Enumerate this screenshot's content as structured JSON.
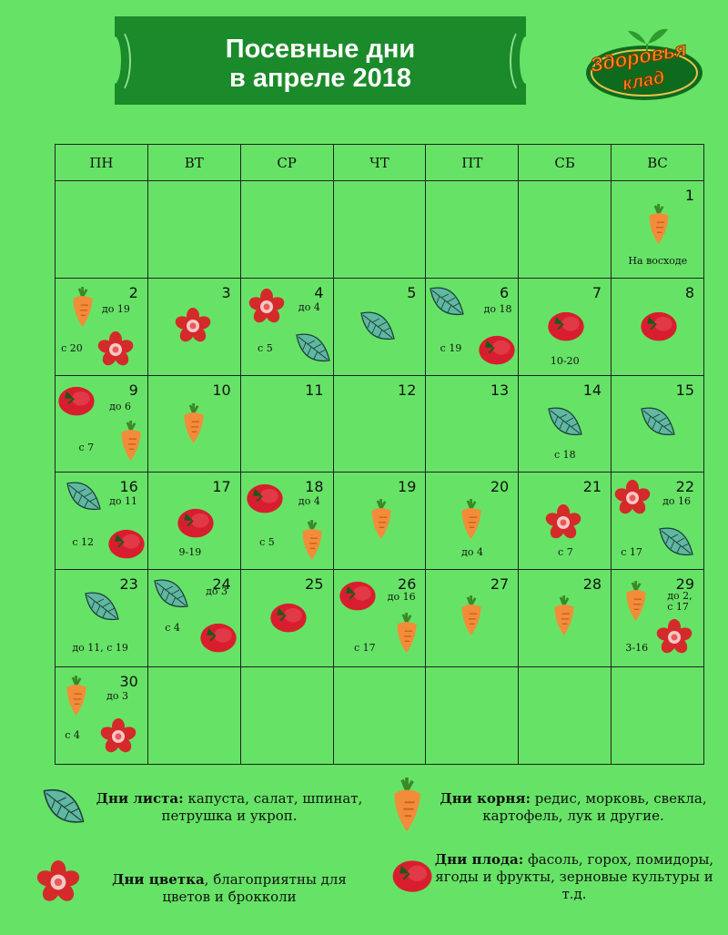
{
  "header": {
    "title": "Посевные дни\nв апреле 2018",
    "logo_word1": "Здоровья",
    "logo_word2": "клад"
  },
  "calendar": {
    "weekdays": [
      "ПН",
      "ВТ",
      "СР",
      "ЧТ",
      "ПТ",
      "СБ",
      "ВС"
    ],
    "cells": [
      {
        "row": 0,
        "col": 6,
        "day": "1",
        "icons": [
          [
            "carrot",
            0.5,
            0.45
          ]
        ],
        "notes": [
          [
            "На восходе",
            0.18,
            0.82
          ]
        ]
      },
      {
        "row": 1,
        "col": 0,
        "day": "2",
        "icons": [
          [
            "carrot",
            0.28,
            0.3
          ],
          [
            "flower",
            0.65,
            0.72
          ]
        ],
        "notes": [
          [
            "до 19",
            0.5,
            0.32
          ],
          [
            "с 20",
            0.06,
            0.72
          ]
        ]
      },
      {
        "row": 1,
        "col": 1,
        "day": "3",
        "icons": [
          [
            "flower",
            0.48,
            0.48
          ]
        ],
        "notes": []
      },
      {
        "row": 1,
        "col": 2,
        "day": "4",
        "icons": [
          [
            "flower",
            0.28,
            0.28
          ],
          [
            "leaf",
            0.78,
            0.72
          ]
        ],
        "notes": [
          [
            "до 4",
            0.62,
            0.3
          ],
          [
            "с 5",
            0.18,
            0.72
          ]
        ]
      },
      {
        "row": 1,
        "col": 3,
        "day": "5",
        "icons": [
          [
            "leaf",
            0.48,
            0.5
          ]
        ],
        "notes": []
      },
      {
        "row": 1,
        "col": 4,
        "day": "6",
        "icons": [
          [
            "leaf",
            0.22,
            0.25
          ],
          [
            "tomato",
            0.75,
            0.72
          ]
        ],
        "notes": [
          [
            "до 18",
            0.62,
            0.32
          ],
          [
            "с 19",
            0.15,
            0.72
          ]
        ]
      },
      {
        "row": 1,
        "col": 5,
        "day": "7",
        "icons": [
          [
            "tomato",
            0.5,
            0.48
          ]
        ],
        "notes": [
          [
            "10-20",
            0.34,
            0.85
          ]
        ]
      },
      {
        "row": 1,
        "col": 6,
        "day": "8",
        "icons": [
          [
            "tomato",
            0.5,
            0.48
          ]
        ],
        "notes": []
      },
      {
        "row": 2,
        "col": 0,
        "day": "9",
        "icons": [
          [
            "tomato",
            0.22,
            0.25
          ],
          [
            "carrot",
            0.8,
            0.68
          ]
        ],
        "notes": [
          [
            "до 6",
            0.58,
            0.32
          ],
          [
            "с 7",
            0.25,
            0.74
          ]
        ]
      },
      {
        "row": 2,
        "col": 1,
        "day": "10",
        "icons": [
          [
            "carrot",
            0.48,
            0.5
          ]
        ],
        "notes": []
      },
      {
        "row": 2,
        "col": 2,
        "day": "11",
        "icons": [],
        "notes": []
      },
      {
        "row": 2,
        "col": 3,
        "day": "12",
        "icons": [],
        "notes": []
      },
      {
        "row": 2,
        "col": 4,
        "day": "13",
        "icons": [],
        "notes": []
      },
      {
        "row": 2,
        "col": 5,
        "day": "14",
        "icons": [
          [
            "leaf",
            0.5,
            0.48
          ]
        ],
        "notes": [
          [
            "с 18",
            0.38,
            0.82
          ]
        ]
      },
      {
        "row": 2,
        "col": 6,
        "day": "15",
        "icons": [
          [
            "leaf",
            0.5,
            0.48
          ]
        ],
        "notes": []
      },
      {
        "row": 3,
        "col": 0,
        "day": "16",
        "icons": [
          [
            "leaf",
            0.3,
            0.25
          ],
          [
            "tomato",
            0.75,
            0.72
          ]
        ],
        "notes": [
          [
            "до 11",
            0.58,
            0.3
          ],
          [
            "с 12",
            0.18,
            0.72
          ]
        ]
      },
      {
        "row": 3,
        "col": 1,
        "day": "17",
        "icons": [
          [
            "tomato",
            0.5,
            0.5
          ]
        ],
        "notes": [
          [
            "9-19",
            0.33,
            0.82
          ]
        ]
      },
      {
        "row": 3,
        "col": 2,
        "day": "18",
        "icons": [
          [
            "tomato",
            0.25,
            0.25
          ],
          [
            "carrot",
            0.76,
            0.7
          ]
        ],
        "notes": [
          [
            "до 4",
            0.62,
            0.3
          ],
          [
            "с 5",
            0.2,
            0.72
          ]
        ]
      },
      {
        "row": 3,
        "col": 3,
        "day": "19",
        "icons": [
          [
            "carrot",
            0.5,
            0.48
          ]
        ],
        "notes": []
      },
      {
        "row": 3,
        "col": 4,
        "day": "20",
        "icons": [
          [
            "carrot",
            0.48,
            0.48
          ]
        ],
        "notes": [
          [
            "до 4",
            0.38,
            0.82
          ]
        ]
      },
      {
        "row": 3,
        "col": 5,
        "day": "21",
        "icons": [
          [
            "flower",
            0.48,
            0.5
          ]
        ],
        "notes": [
          [
            "с 7",
            0.42,
            0.82
          ]
        ]
      },
      {
        "row": 3,
        "col": 6,
        "day": "22",
        "icons": [
          [
            "flower",
            0.22,
            0.25
          ],
          [
            "leaf",
            0.7,
            0.72
          ]
        ],
        "notes": [
          [
            "до 16",
            0.55,
            0.3
          ],
          [
            "с  17",
            0.1,
            0.82
          ]
        ]
      },
      {
        "row": 4,
        "col": 0,
        "day": "23",
        "icons": [
          [
            "leaf",
            0.5,
            0.38
          ]
        ],
        "notes": [
          [
            "до 11, с 19",
            0.18,
            0.8
          ]
        ]
      },
      {
        "row": 4,
        "col": 1,
        "day": "24",
        "icons": [
          [
            "leaf",
            0.25,
            0.25
          ],
          [
            "tomato",
            0.75,
            0.68
          ]
        ],
        "notes": [
          [
            "до 3",
            0.62,
            0.22
          ],
          [
            "с 4",
            0.18,
            0.6
          ]
        ]
      },
      {
        "row": 4,
        "col": 2,
        "day": "25",
        "icons": [
          [
            "tomato",
            0.5,
            0.48
          ]
        ],
        "notes": []
      },
      {
        "row": 4,
        "col": 3,
        "day": "26",
        "icons": [
          [
            "tomato",
            0.25,
            0.25
          ],
          [
            "carrot",
            0.78,
            0.65
          ]
        ],
        "notes": [
          [
            "до 16",
            0.58,
            0.28
          ],
          [
            "с 17",
            0.22,
            0.8
          ]
        ]
      },
      {
        "row": 4,
        "col": 4,
        "day": "27",
        "icons": [
          [
            "carrot",
            0.48,
            0.48
          ]
        ],
        "notes": []
      },
      {
        "row": 4,
        "col": 5,
        "day": "28",
        "icons": [
          [
            "carrot",
            0.48,
            0.48
          ]
        ],
        "notes": []
      },
      {
        "row": 4,
        "col": 6,
        "day": "29",
        "icons": [
          [
            "carrot",
            0.25,
            0.33
          ],
          [
            "flower",
            0.68,
            0.68
          ]
        ],
        "notes": [
          [
            "до 2,",
            0.6,
            0.27
          ],
          [
            "с 17",
            0.6,
            0.38
          ],
          [
            "3-16",
            0.15,
            0.8
          ]
        ]
      },
      {
        "row": 5,
        "col": 0,
        "day": "30",
        "icons": [
          [
            "carrot",
            0.22,
            0.3
          ],
          [
            "flower",
            0.68,
            0.7
          ]
        ],
        "notes": [
          [
            "до 3",
            0.55,
            0.3
          ],
          [
            "с 4",
            0.1,
            0.7
          ]
        ]
      }
    ]
  },
  "legend": [
    {
      "type": "leaf",
      "title": "Дни листа:",
      "text": " капуста, салат, шпинат, петрушка и укроп."
    },
    {
      "type": "carrot",
      "title": "Дни корня:",
      "text": " редис, морковь, свекла, картофель, лук и другие."
    },
    {
      "type": "flower",
      "title": "Дни цветка",
      "text": ", благоприятны для цветов и брокколи"
    },
    {
      "type": "tomato",
      "title": "Дни плода:",
      "text": " фасоль, горох, помидоры, ягоды и фрукты, зерновые культуры и т.д."
    }
  ],
  "colors": {
    "background": "#66e366",
    "banner": "#1a8a2a",
    "leaf": "#5fb8a0",
    "carrot": "#f28c3a",
    "flower": "#d42a2a",
    "tomato": "#d81e2e"
  }
}
